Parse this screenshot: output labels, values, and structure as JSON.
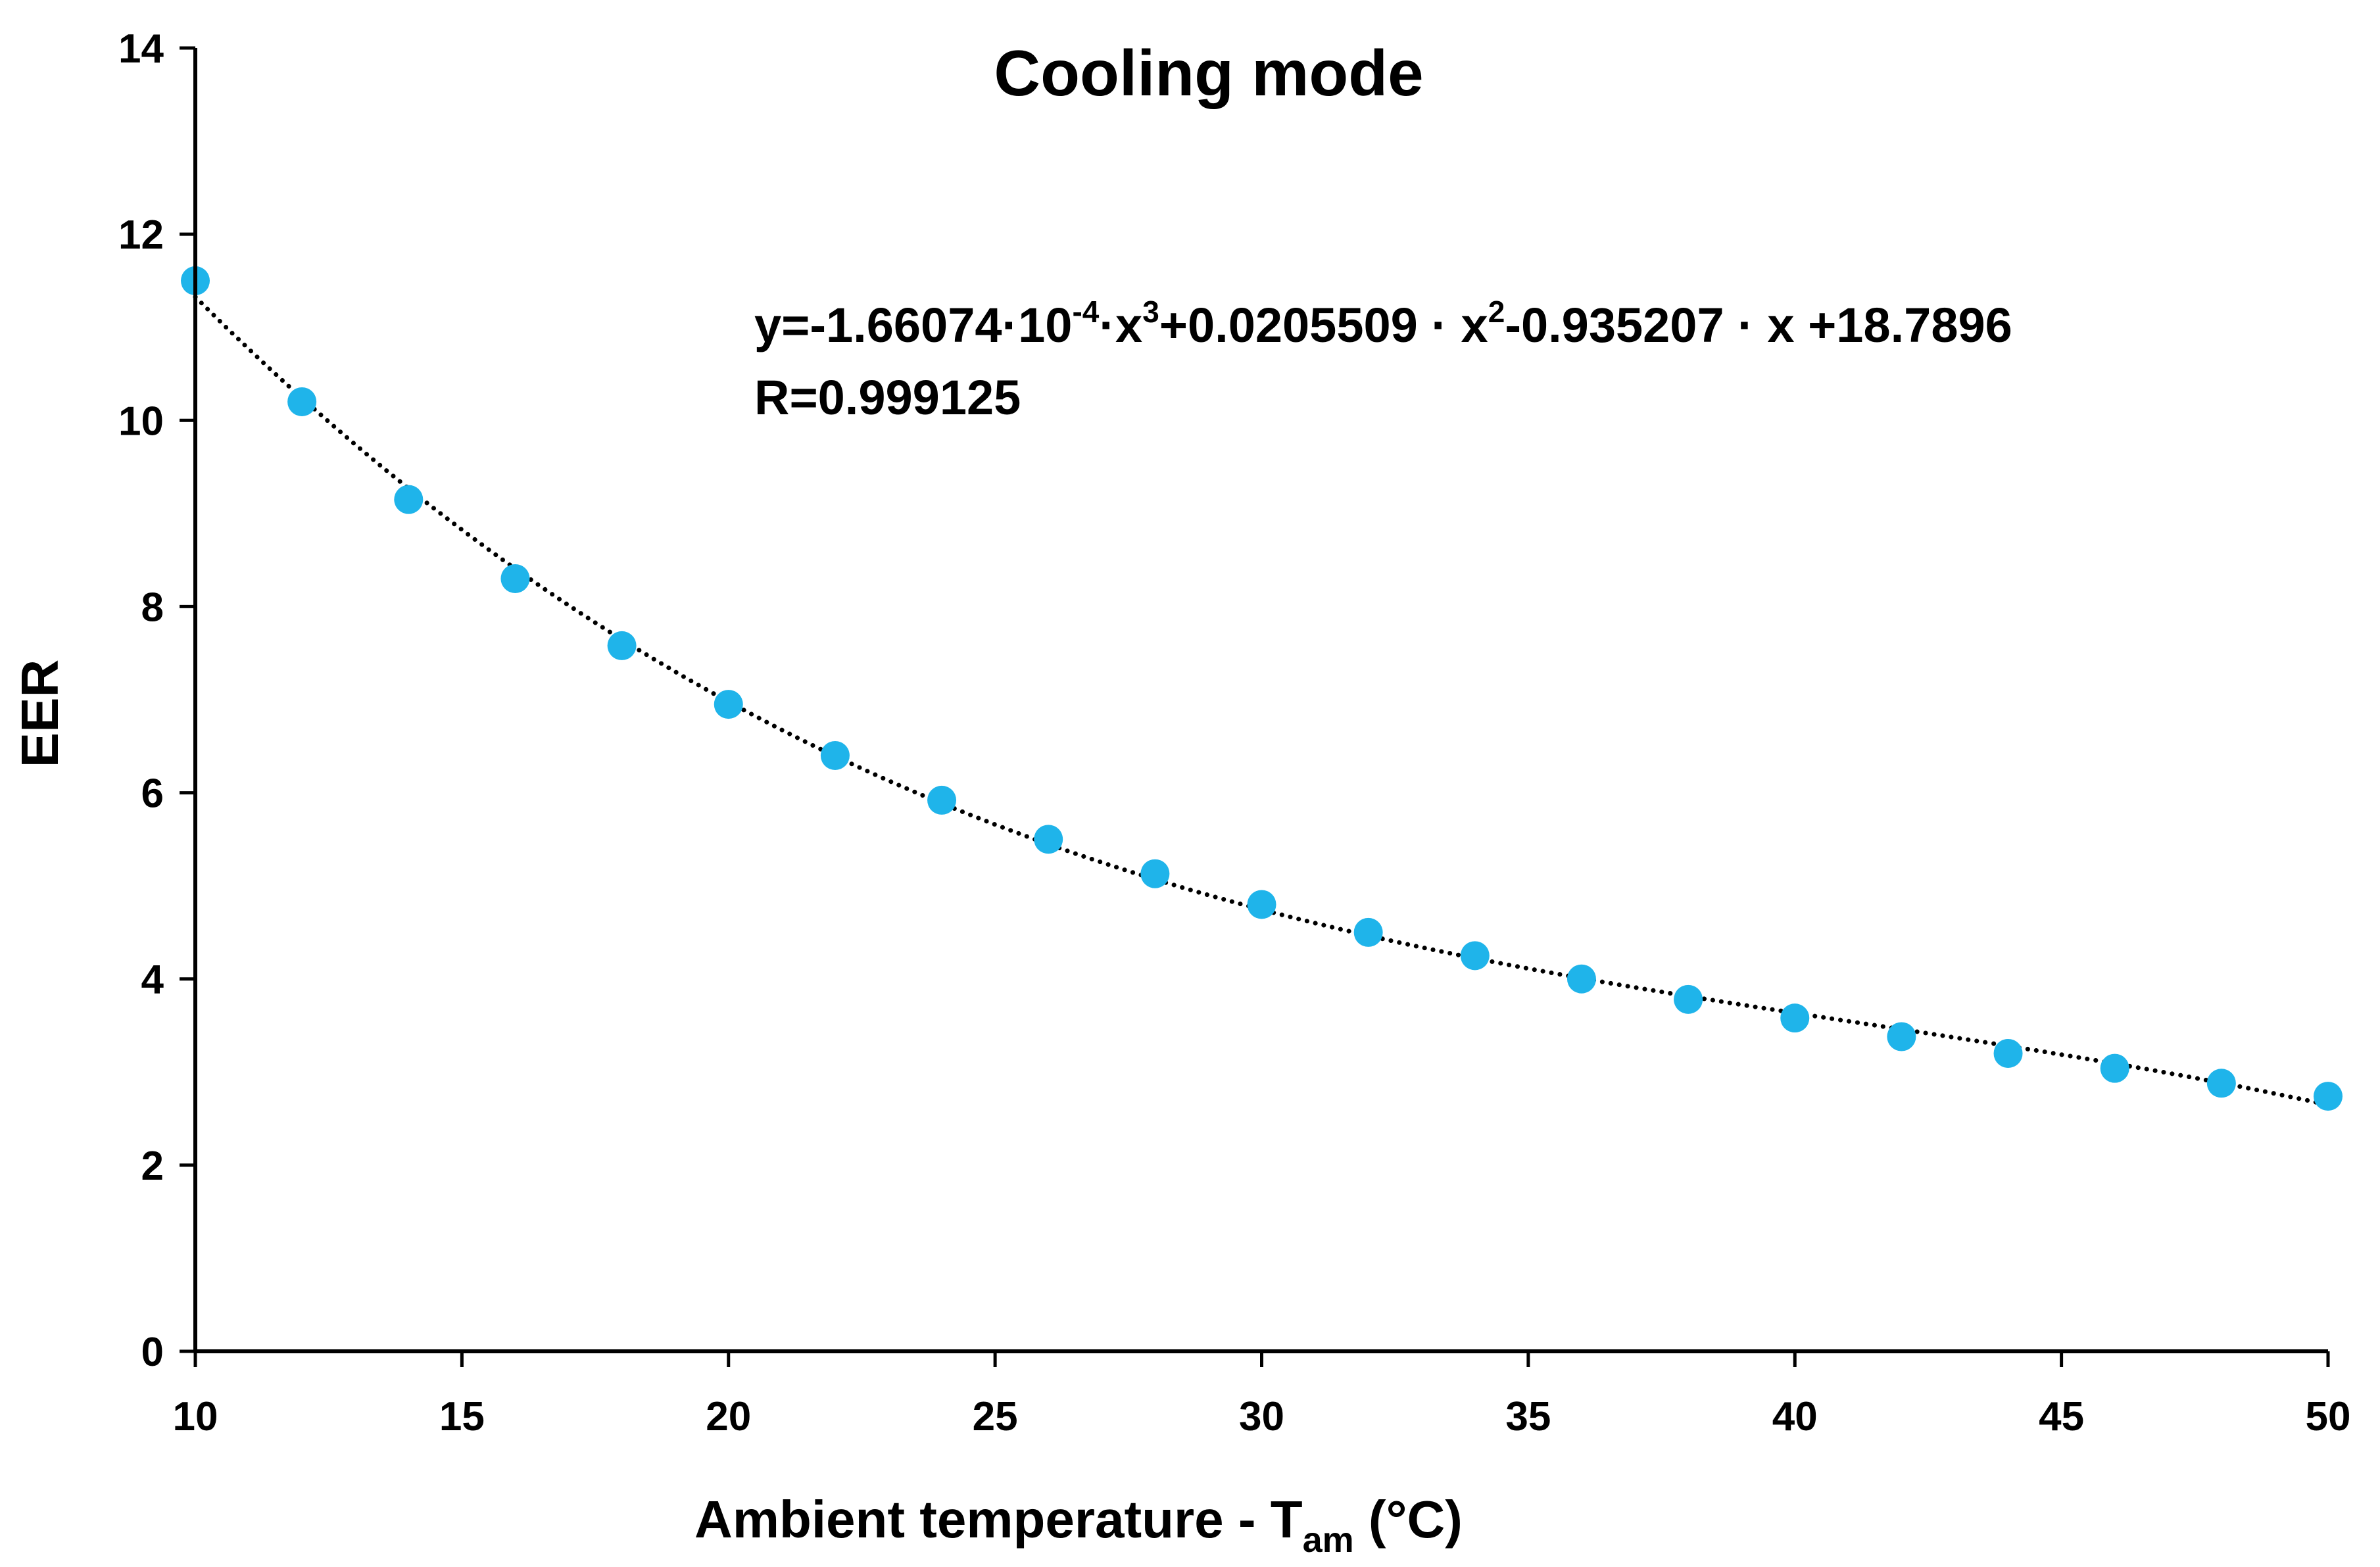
{
  "chart_data": {
    "type": "scatter",
    "title": "Cooling mode",
    "xlabel": "Ambient temperature - T",
    "xlabel_subscript": "am",
    "xlabel_unit": " (°C)",
    "ylabel": "EER",
    "xlim": [
      10,
      50
    ],
    "ylim": [
      0,
      14
    ],
    "x_ticks": [
      10,
      15,
      20,
      25,
      30,
      35,
      40,
      45,
      50
    ],
    "y_ticks": [
      0,
      2,
      4,
      6,
      8,
      10,
      12,
      14
    ],
    "grid": false,
    "series": [
      {
        "name": "EER",
        "color": "#1fb4ea",
        "x": [
          10,
          12,
          14,
          16,
          18,
          20,
          22,
          24,
          26,
          28,
          30,
          32,
          34,
          36,
          38,
          40,
          42,
          44,
          46,
          48,
          50
        ],
        "values": [
          11.5,
          10.2,
          9.15,
          8.3,
          7.58,
          6.95,
          6.4,
          5.92,
          5.5,
          5.13,
          4.8,
          4.5,
          4.25,
          4.0,
          3.78,
          3.58,
          3.38,
          3.2,
          3.04,
          2.88,
          2.74
        ]
      }
    ],
    "trendline": {
      "type": "polynomial-3",
      "style": "dotted",
      "color": "#000000",
      "coefficients": {
        "a3": -0.000166074,
        "a2": 0.0205509,
        "a1": -0.935207,
        "a0": 18.7896
      }
    },
    "annotations": {
      "equation": {
        "p1": "y=-1.66074·10",
        "p1_sup": "-4",
        "p2": "·x",
        "p2_sup": "3",
        "p3": "+0.0205509  · x",
        "p3_sup": "2",
        "p4": "-0.935207  · x +18.7896"
      },
      "r_value": "R=0.999125"
    }
  }
}
